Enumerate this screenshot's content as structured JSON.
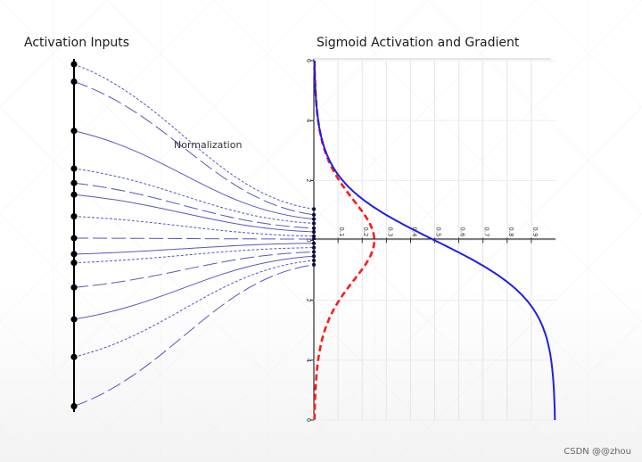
{
  "figure": {
    "left_title": "Activation Inputs",
    "right_title": "Sigmoid Activation and Gradient",
    "annotation": "Normalization",
    "watermark": "CSDN @@zhou"
  },
  "colors": {
    "sigmoid": "#1f1fe6",
    "gradient": "#ff1a1a",
    "lines": "#3a3ab5",
    "axis": "#000000"
  },
  "chart_data": {
    "type": "line",
    "orientation": "rotated: y axis horizontal, x axis vertical",
    "series": [
      {
        "key": "sigmoid",
        "style": "solid",
        "x": [
          -6,
          -5,
          -4,
          -3,
          -2,
          -1,
          0,
          1,
          2,
          3,
          4,
          5,
          6
        ],
        "values": [
          0.0025,
          0.0067,
          0.018,
          0.047,
          0.119,
          0.269,
          0.5,
          0.731,
          0.881,
          0.953,
          0.982,
          0.993,
          0.9975
        ]
      },
      {
        "key": "gradient",
        "style": "dashed",
        "x": [
          -6,
          -5,
          -4,
          -3,
          -2,
          -1,
          0,
          1,
          2,
          3,
          4,
          5,
          6
        ],
        "values": [
          0.0025,
          0.0066,
          0.0177,
          0.0452,
          0.105,
          0.197,
          0.25,
          0.197,
          0.105,
          0.0452,
          0.0177,
          0.0066,
          0.0025
        ]
      }
    ],
    "x_ticks": [
      "6",
      "4",
      "2",
      "0",
      "2",
      "4",
      "6"
    ],
    "y_ticks": [
      "0.1",
      "0.2",
      "0.3",
      "0.4",
      "0.5",
      "0.6",
      "0.7",
      "0.8",
      "0.9"
    ],
    "xlim": [
      -6,
      6
    ],
    "ylim": [
      0,
      1
    ],
    "grid": true
  },
  "inputs": {
    "source_values": [
      -6,
      -5.4,
      -3.7,
      -2.4,
      -1.9,
      -1.5,
      -0.75,
      0,
      0.55,
      0.85,
      1.7,
      2.8,
      4.1,
      5.8
    ],
    "normalized_values": [
      -1.05,
      -0.85,
      -0.7,
      -0.55,
      -0.38,
      -0.25,
      -0.1,
      0,
      0.15,
      0.3,
      0.45,
      0.6,
      0.75,
      0.9
    ]
  }
}
